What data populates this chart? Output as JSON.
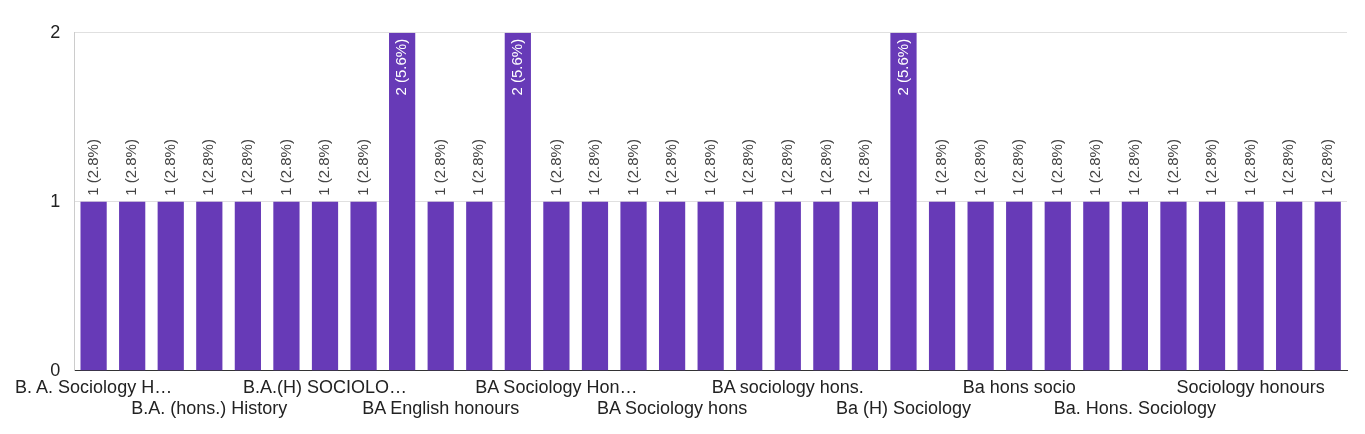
{
  "chart_data": {
    "type": "bar",
    "categories": [
      "B. A. Sociology H…",
      null,
      null,
      "B.A. (hons.) History",
      null,
      null,
      "B.A.(H) SOCIOLO…",
      null,
      null,
      "BA English honours",
      null,
      null,
      "BA Sociology Hon…",
      null,
      null,
      "BA Sociology hons",
      null,
      null,
      "BA sociology hons.",
      null,
      null,
      "Ba (H) Sociology",
      null,
      null,
      "Ba hons socio",
      null,
      null,
      "Ba. Hons. Sociology",
      null,
      null,
      "Sociology honours",
      null,
      null
    ],
    "values": [
      1,
      1,
      1,
      1,
      1,
      1,
      1,
      1,
      2,
      1,
      1,
      2,
      1,
      1,
      1,
      1,
      1,
      1,
      1,
      1,
      1,
      2,
      1,
      1,
      1,
      1,
      1,
      1,
      1,
      1,
      1,
      1,
      1
    ],
    "value_labels": [
      "1 (2.8%)",
      "1 (2.8%)",
      "1 (2.8%)",
      "1 (2.8%)",
      "1 (2.8%)",
      "1 (2.8%)",
      "1 (2.8%)",
      "1 (2.8%)",
      "2 (5.6%)",
      "1 (2.8%)",
      "1 (2.8%)",
      "2 (5.6%)",
      "1 (2.8%)",
      "1 (2.8%)",
      "1 (2.8%)",
      "1 (2.8%)",
      "1 (2.8%)",
      "1 (2.8%)",
      "1 (2.8%)",
      "1 (2.8%)",
      "1 (2.8%)",
      "2 (5.6%)",
      "1 (2.8%)",
      "1 (2.8%)",
      "1 (2.8%)",
      "1 (2.8%)",
      "1 (2.8%)",
      "1 (2.8%)",
      "1 (2.8%)",
      "1 (2.8%)",
      "1 (2.8%)",
      "1 (2.8%)",
      "1 (2.8%)"
    ],
    "color": "#673ab7",
    "ylim": [
      0,
      2
    ],
    "yticks": [
      0,
      1,
      2
    ],
    "grid": "y"
  }
}
